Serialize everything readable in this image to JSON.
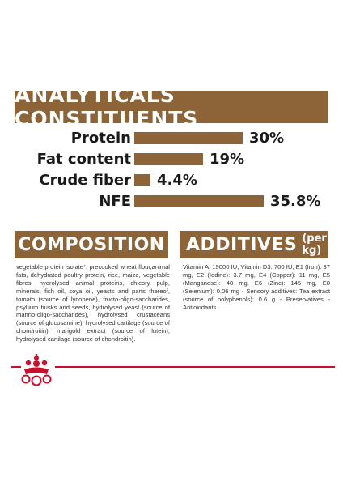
{
  "analytical": {
    "title": "ANALYTICALS CONSTITUENTS"
  },
  "chart_data": {
    "type": "bar",
    "orientation": "horizontal",
    "categories": [
      "Protein",
      "Fat content",
      "Crude fiber",
      "NFE"
    ],
    "values": [
      30,
      19,
      4.4,
      35.8
    ],
    "value_labels": [
      "30%",
      "19%",
      "4.4%",
      "35.8%"
    ],
    "unit": "%",
    "title": "ANALYTICALS CONSTITUENTS",
    "xlabel": "",
    "ylabel": "",
    "grid": false,
    "legend": "none",
    "bar_color": "#8c6438"
  },
  "composition": {
    "title": "COMPOSITION",
    "text": "vegetable protein isolate*, precooked wheat flour,animal fats, dehydrated poultry protein, rice, maize, vegetable fibres, hydrolysed animal proteins, chicory pulp, minerals, fish oil, soya oil, yeasts and parts thereof, tomato (source of lycopene), fructo-oligo-saccharides, psyllium husks and seeds, hydrolysed yeast (source of manno-oligo-saccharides), hydrolysed crustaceans (source of glucosamine), hydrolysed cartilage (source of chondroitin), marigold extract (source of lutein), hydrolysed cartilage (source of chondroitin)."
  },
  "additives": {
    "title": "ADDITIVES",
    "unit": "(per kg)",
    "text": "Vitamin A: 19000 IU, Vitamin D3: 700 IU, E1 (Iron): 37 mg, E2 (Iodine): 3.7 mg, E4 (Copper): 11 mg, E5 (Manganese): 48 mg, E6 (Zinc): 145 mg, E8 (Selenium): 0.06 mg - Sensory additives: Tea extract (source of polyphenols): 0.6 g - Preservatives - Antioxidants."
  },
  "colors": {
    "brand_brown": "#8c6438",
    "brand_red": "#c8102e"
  },
  "icons": {
    "logo": "royal-crown-logo"
  }
}
